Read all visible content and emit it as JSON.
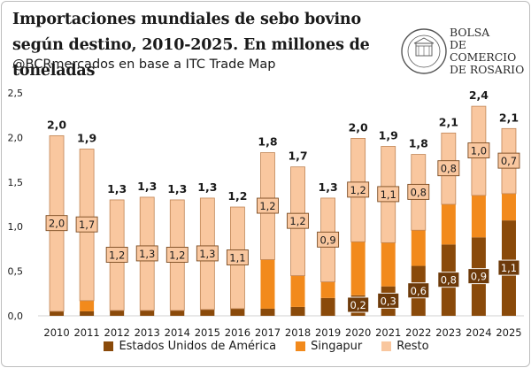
{
  "header": {
    "title": "Importaciones mundiales de sebo bovino según destino, 2010-2025. En millones de toneladas",
    "subtitle": "@BCRmercados en base a ITC Trade Map"
  },
  "logo": {
    "lines": [
      "BOLSA",
      "DE COMERCIO",
      "DE ROSARIO"
    ],
    "seal_text": "BOLSA DE COMERCIO DE ROSARIO"
  },
  "colors": {
    "estados_unidos": "#8a4a0a",
    "singapur": "#f28a1c",
    "resto": "#f9c79f",
    "resto_border": "#c08555",
    "label_dark_bg": "#6d3a0a",
    "label_light_bg": "#f9c79f"
  },
  "chart_data": {
    "type": "bar",
    "stacked": true,
    "categories": [
      "2010",
      "2011",
      "2012",
      "2013",
      "2014",
      "2015",
      "2016",
      "2017",
      "2018",
      "2019",
      "2020",
      "2021",
      "2022",
      "2023",
      "2024",
      "2025"
    ],
    "series": [
      {
        "name": "Estados Unidos de América",
        "values": [
          0.05,
          0.05,
          0.06,
          0.06,
          0.06,
          0.07,
          0.08,
          0.08,
          0.1,
          0.2,
          0.23,
          0.33,
          0.56,
          0.8,
          0.88,
          1.07
        ]
      },
      {
        "name": "Singapur",
        "values": [
          0.0,
          0.12,
          0.0,
          0.0,
          0.0,
          0.0,
          0.0,
          0.55,
          0.35,
          0.18,
          0.6,
          0.49,
          0.4,
          0.45,
          0.47,
          0.3
        ]
      },
      {
        "name": "Resto",
        "values": [
          1.97,
          1.7,
          1.24,
          1.27,
          1.24,
          1.25,
          1.14,
          1.2,
          1.22,
          0.94,
          1.16,
          1.08,
          0.85,
          0.8,
          1.0,
          0.73
        ]
      }
    ],
    "totals": [
      "2,0",
      "1,9",
      "1,3",
      "1,3",
      "1,3",
      "1,3",
      "1,2",
      "1,8",
      "1,7",
      "1,3",
      "2,0",
      "1,9",
      "1,8",
      "2,1",
      "2,4",
      "2,1"
    ],
    "labels_resto": [
      "2,0",
      "1,7",
      "1,2",
      "1,3",
      "1,2",
      "1,3",
      "1,1",
      "1,2",
      "1,2",
      "0,9",
      "1,2",
      "1,1",
      "0,8",
      "0,8",
      "1,0",
      "0,7"
    ],
    "labels_usa": [
      "",
      "",
      "",
      "",
      "",
      "",
      "",
      "",
      "",
      "",
      "0,2",
      "0,3",
      "0,6",
      "0,8",
      "0,9",
      "1,1"
    ],
    "yticks": [
      "0,0",
      "0,5",
      "1,0",
      "1,5",
      "2,0",
      "2,5"
    ],
    "ylim": [
      0,
      2.5
    ],
    "legend_position": "bottom",
    "grid": false
  }
}
